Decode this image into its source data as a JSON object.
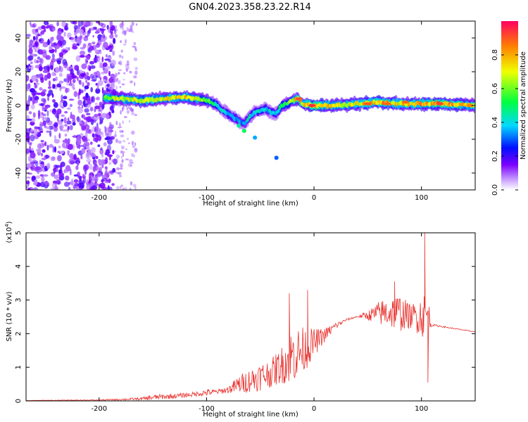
{
  "title": "GN04.2023.358.23.22.R14",
  "chart_data": [
    {
      "type": "heatmap",
      "xlabel": "Height of straight line (km)",
      "ylabel": "Frequency (Hz)",
      "xlim": [
        -268,
        150
      ],
      "ylim": [
        -50,
        50
      ],
      "x_ticks": [
        -200,
        -100,
        0,
        100
      ],
      "x_tick_labels": [
        "-200",
        "-100",
        "0",
        "100"
      ],
      "y_ticks": [
        40,
        20,
        0,
        -20,
        -40
      ],
      "y_tick_labels": [
        "40",
        "20",
        "0",
        "-20",
        "-40"
      ],
      "colorbar": {
        "label": "Normalized spectral amplitude",
        "range": [
          0,
          1
        ],
        "ticks": [
          0.0,
          0.2,
          0.4,
          0.6,
          0.8
        ],
        "tick_labels": [
          "0.0",
          "0.2",
          "0.4",
          "0.6",
          "0.8"
        ],
        "colormap": "rainbow"
      },
      "noise_region": {
        "x_from": -268,
        "x_to": -185,
        "x_faint_to": -165
      },
      "ridge": {
        "x": [
          -195,
          -180,
          -160,
          -140,
          -120,
          -110,
          -100,
          -90,
          -85,
          -80,
          -75,
          -70,
          -65,
          -60,
          -55,
          -50,
          -45,
          -40,
          -35,
          -30,
          -25,
          -20,
          -15,
          -10,
          0,
          20,
          40,
          60,
          80,
          100,
          120,
          150
        ],
        "freq": [
          5,
          4,
          3,
          4,
          5,
          4,
          3,
          0,
          -3,
          -5,
          -7,
          -9,
          -11,
          -7,
          -4,
          -3,
          -2,
          -4,
          -5,
          0,
          1,
          3,
          4,
          1,
          0,
          0,
          1,
          2,
          1,
          1,
          1,
          0
        ],
        "strength": [
          0.65,
          0.7,
          0.7,
          0.72,
          0.78,
          0.7,
          0.6,
          0.45,
          0.4,
          0.4,
          0.4,
          0.35,
          0.35,
          0.45,
          0.4,
          0.45,
          0.4,
          0.4,
          0.4,
          0.55,
          0.55,
          0.65,
          0.85,
          0.75,
          0.9,
          0.72,
          0.75,
          0.85,
          0.8,
          0.82,
          0.9,
          0.7
        ]
      },
      "hot_spots": [
        {
          "x": -2,
          "freq": 0,
          "value": 0.95
        },
        {
          "x": -14,
          "freq": 4,
          "value": 0.9
        },
        {
          "x": 50,
          "freq": 1,
          "value": 0.9
        },
        {
          "x": 68,
          "freq": 1,
          "value": 0.88
        },
        {
          "x": 85,
          "freq": 2,
          "value": 0.88
        },
        {
          "x": 117,
          "freq": 1,
          "value": 0.92
        },
        {
          "x": 145,
          "freq": 0,
          "value": 0.85
        }
      ]
    },
    {
      "type": "line",
      "xlabel": "Height of straight line (km)",
      "ylabel": "SNR (10 * v/v)",
      "y_scale_note": "(x10",
      "y_scale_exponent": "4",
      "y_scale_close": ")",
      "xlim": [
        -268,
        150
      ],
      "ylim": [
        0,
        5
      ],
      "x_ticks": [
        -200,
        -100,
        0,
        100
      ],
      "x_tick_labels": [
        "-200",
        "-100",
        "0",
        "100"
      ],
      "y_ticks": [
        0,
        1,
        2,
        3,
        4,
        5
      ],
      "y_tick_labels": [
        "0",
        "1",
        "2",
        "3",
        "4",
        "5"
      ],
      "color": "#e8322e",
      "series": [
        {
          "x": [
            -268,
            -200,
            -160,
            -150,
            -130,
            -110,
            -100,
            -90,
            -80,
            -70,
            -60,
            -50,
            -40,
            -30,
            -20,
            -10,
            0,
            10,
            20,
            30,
            40,
            50,
            60,
            70,
            80,
            90,
            100,
            105,
            110,
            120,
            130,
            140,
            150
          ],
          "baseline": [
            0.01,
            0.02,
            0.05,
            0.08,
            0.12,
            0.18,
            0.22,
            0.25,
            0.3,
            0.4,
            0.5,
            0.6,
            0.7,
            0.9,
            1.1,
            1.3,
            1.6,
            1.9,
            2.2,
            2.4,
            2.5,
            2.5,
            2.5,
            2.5,
            2.45,
            2.4,
            2.35,
            2.3,
            2.25,
            2.2,
            2.15,
            2.1,
            2.05
          ],
          "noise_amp": [
            0.01,
            0.02,
            0.06,
            0.12,
            0.1,
            0.1,
            0.15,
            0.1,
            0.15,
            0.4,
            0.5,
            0.6,
            0.6,
            0.8,
            1.2,
            1.0,
            0.6,
            0.3,
            0.15,
            0.05,
            0.03,
            0.2,
            0.5,
            0.7,
            0.8,
            0.5,
            0.9,
            1.1,
            0.05,
            0.03,
            0.02,
            0.02,
            0.02
          ],
          "peaks": [
            {
              "x": -38,
              "y": 1.1
            },
            {
              "x": -23,
              "y": 3.2
            },
            {
              "x": -6,
              "y": 3.3
            },
            {
              "x": 75,
              "y": 3.55
            },
            {
              "x": 103,
              "y": 5.0
            },
            {
              "x": 106,
              "y": 0.55
            }
          ]
        }
      ]
    }
  ]
}
